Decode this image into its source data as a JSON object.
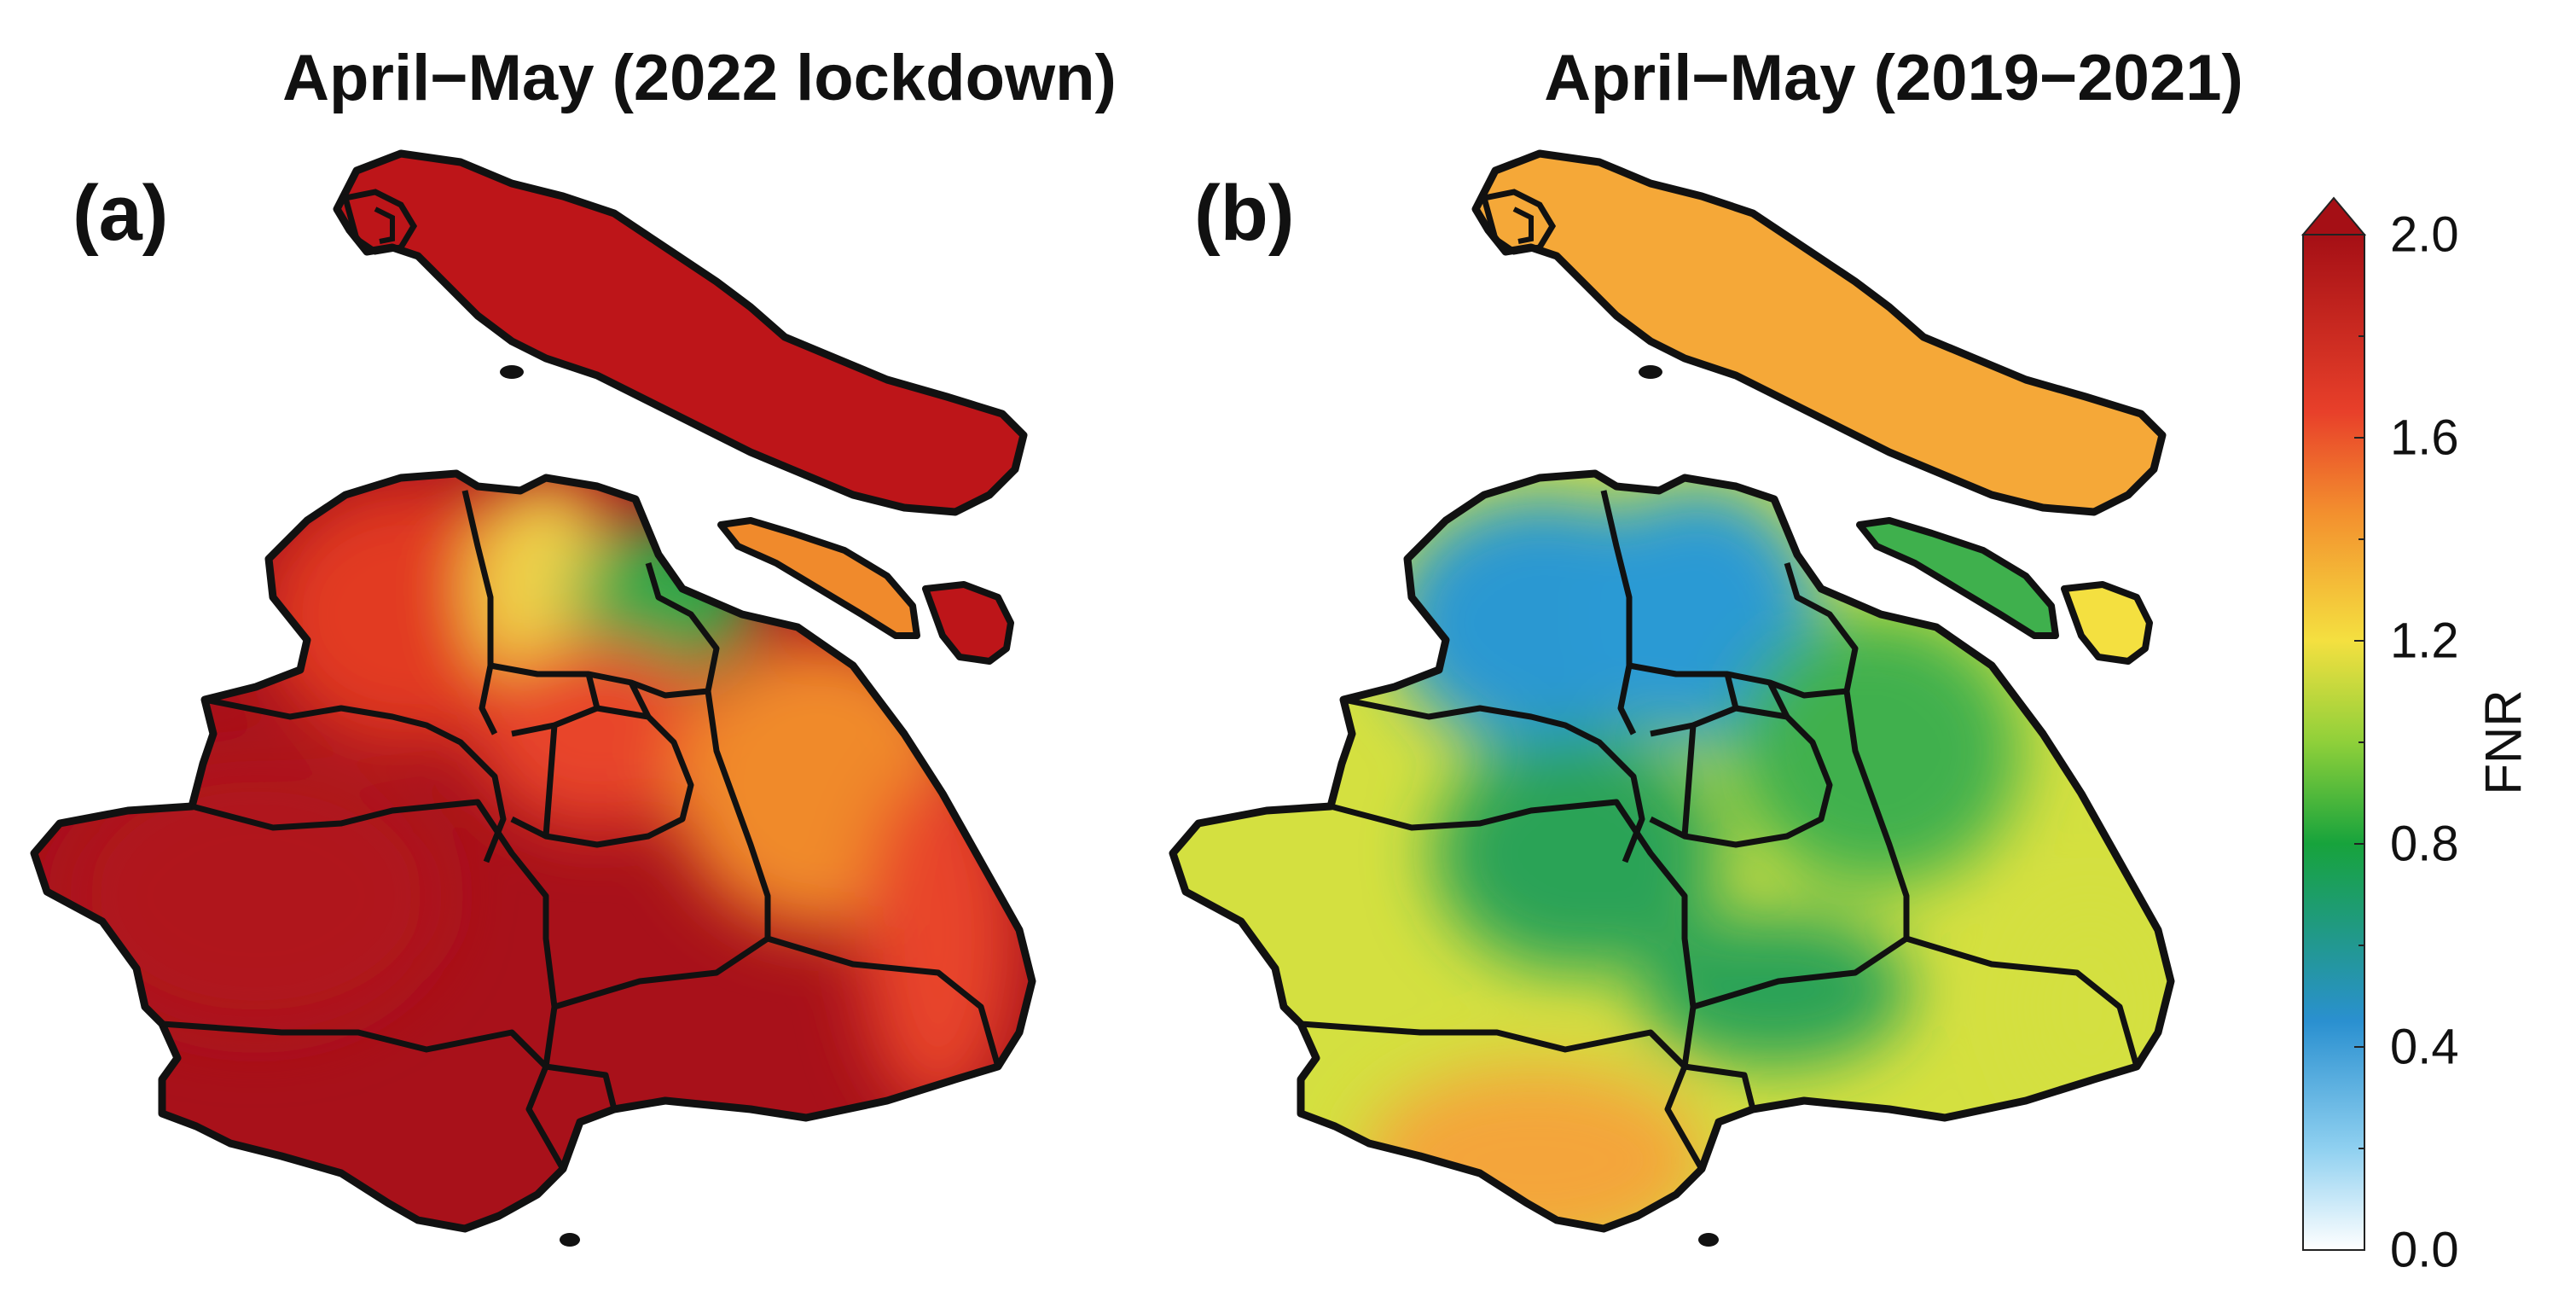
{
  "figure": {
    "panels": [
      {
        "label": "(a)",
        "title": "April−May (2022 lockdown)"
      },
      {
        "label": "(b)",
        "title": "April−May (2019−2021)"
      }
    ],
    "colorbar": {
      "title": "FNR",
      "min": 0.0,
      "max": 2.0,
      "extend": "max",
      "ticks": [
        "0.0",
        "0.4",
        "0.8",
        "1.2",
        "1.6",
        "2.0"
      ],
      "colors": {
        "c0_0": "#ffffff",
        "c0_2": "#8fd0f0",
        "c0_45": "#2a90d0",
        "c0_8": "#17a33c",
        "c1_0": "#8fd03a",
        "c1_2": "#f4e040",
        "c1_45": "#f3902e",
        "c1_65": "#e8402a",
        "c2_0": "#a50f15"
      }
    },
    "map_colors": {
      "a_island_main": "#bd1519",
      "a_northwest": "#e23a22",
      "a_north_center": "#f0d24a",
      "a_northeast_coast": "#2fa84a",
      "a_east": "#f08a2c",
      "a_center": "#e8442a",
      "a_west": "#b0141a",
      "a_south": "#a8111a",
      "b_island_main": "#f5a838",
      "b_northwest": "#2c98d2",
      "b_north_center": "#2a9ad4",
      "b_east": "#3fb04d",
      "b_center": "#2aa356",
      "b_west": "#d4e040",
      "b_south": "#f4a53a",
      "boundary": "#111111"
    }
  }
}
